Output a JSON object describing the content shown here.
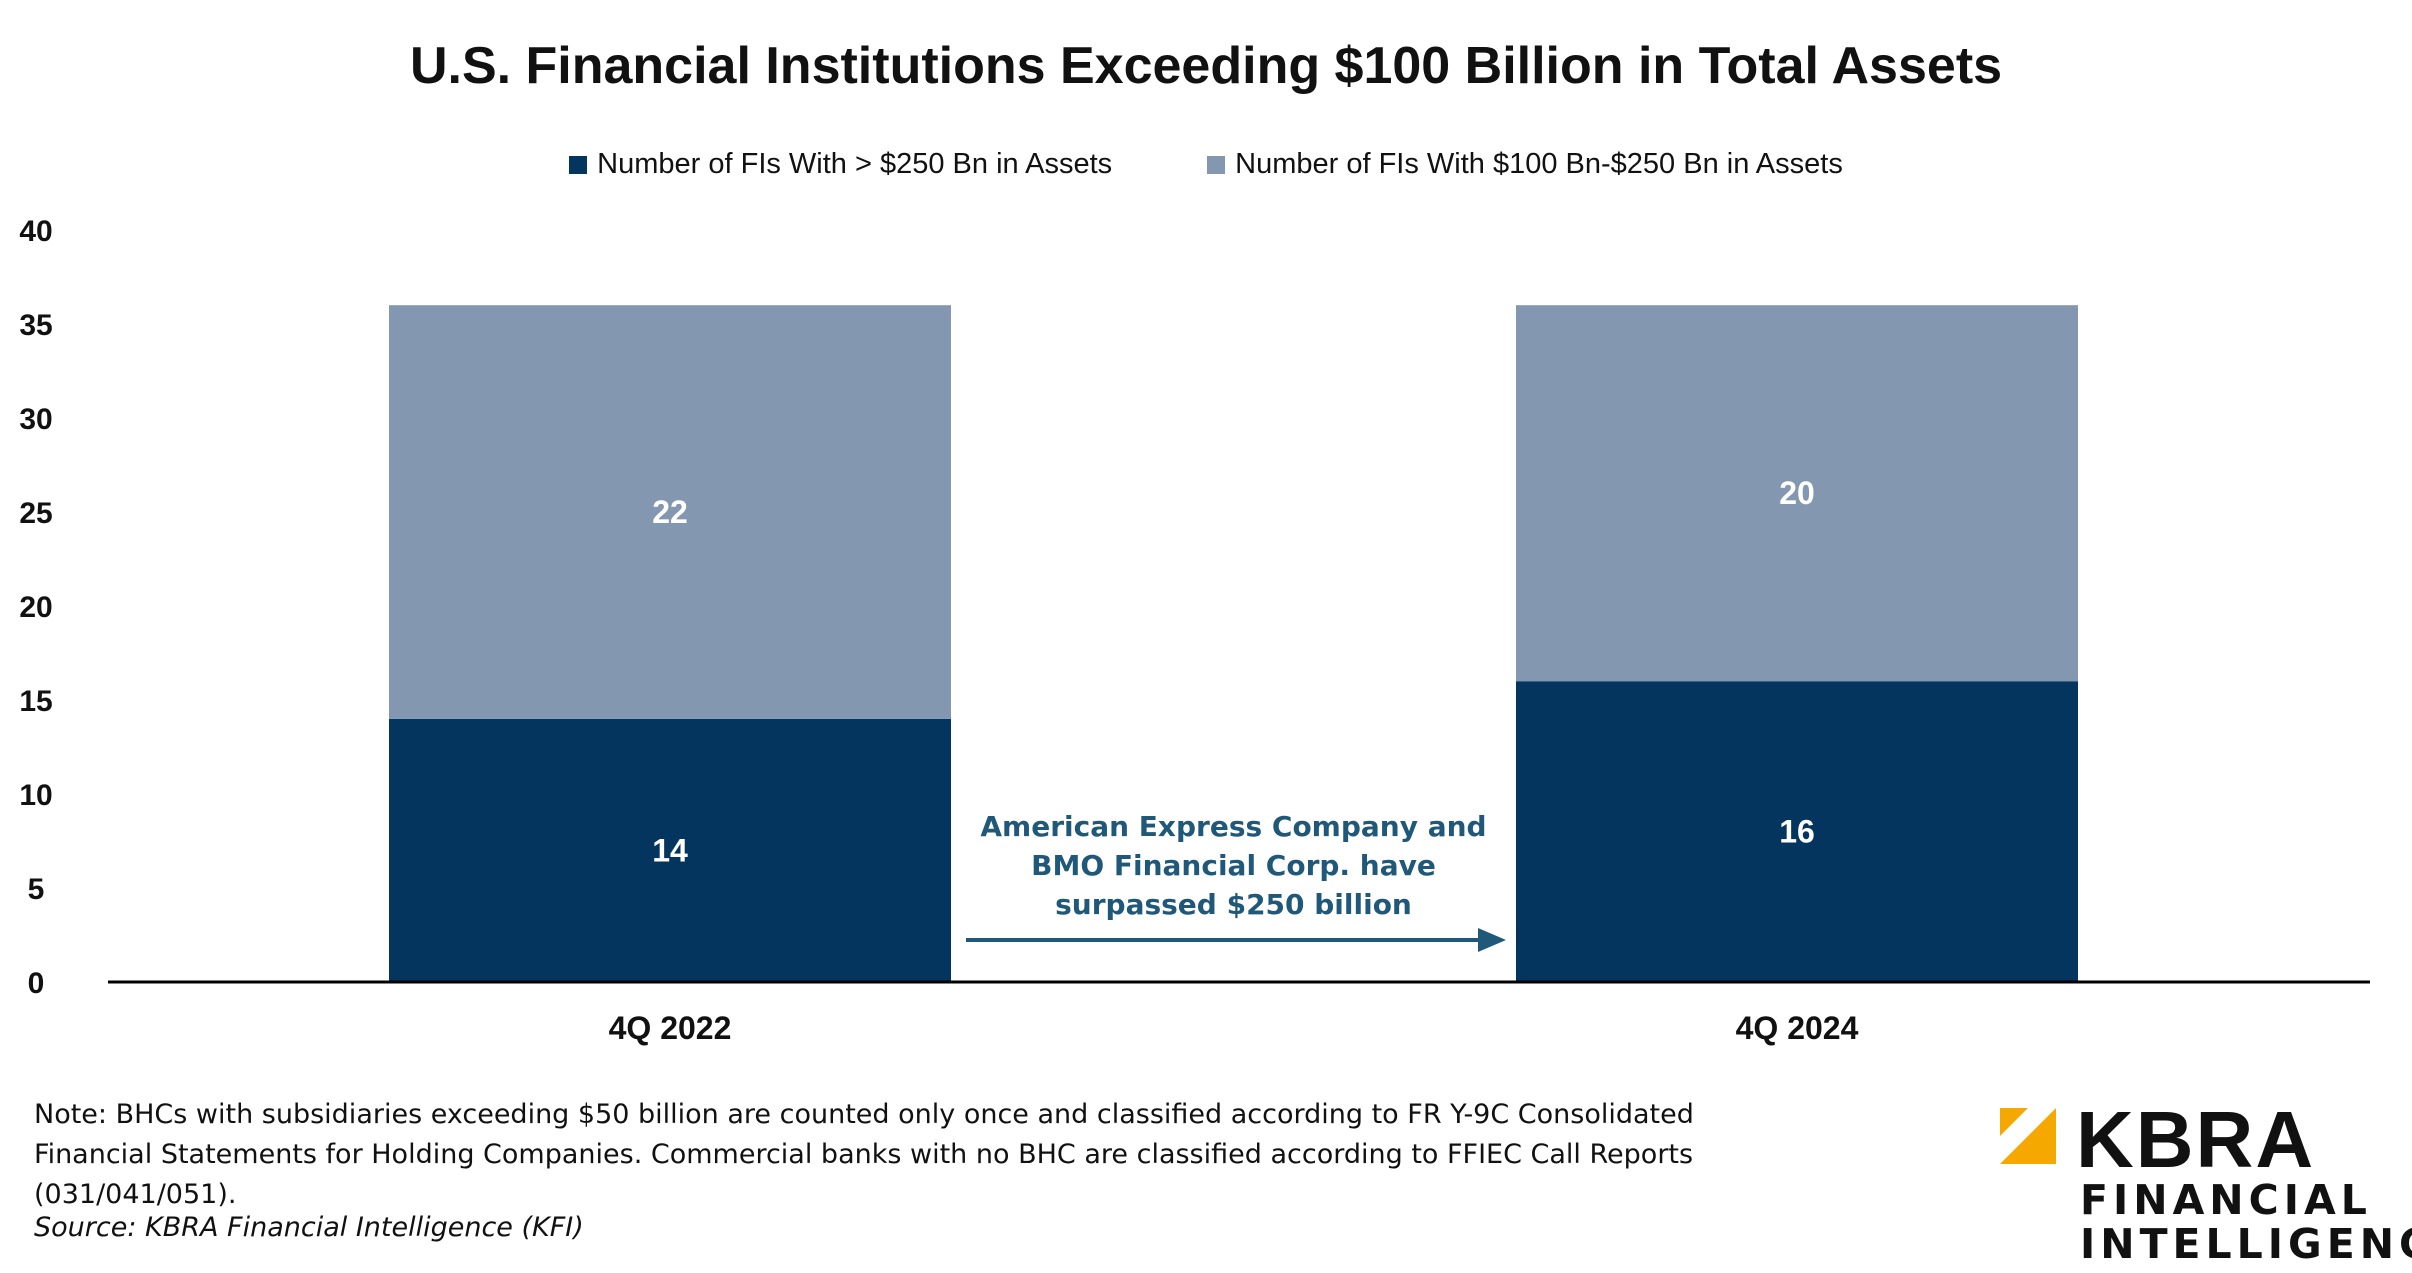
{
  "chart_data": {
    "type": "bar",
    "stacked": true,
    "title": "U.S. Financial Institutions Exceeding $100 Billion in Total Assets",
    "categories": [
      "4Q 2022",
      "4Q 2024"
    ],
    "series": [
      {
        "name": "Number of FIs With > $250 Bn in Assets",
        "values": [
          14,
          16
        ],
        "color": "#04355f"
      },
      {
        "name": "Number of FIs With $100 Bn-$250 Bn in Assets",
        "values": [
          22,
          20
        ],
        "color": "#8497b0"
      }
    ],
    "ylim": [
      0,
      40
    ],
    "yticks": [
      "0",
      "5",
      "10",
      "15",
      "20",
      "25",
      "30",
      "35",
      "40"
    ],
    "grid": false,
    "legend_position": "top",
    "annotation": {
      "lines": [
        "American Express Company and",
        "BMO Financial Corp. have",
        "surpassed $250 billion"
      ],
      "color": "#1f5878"
    }
  },
  "footer": {
    "note": "Note: BHCs with subsidiaries exceeding $50 billion are counted only once and classified according to FR Y-9C Consolidated Financial Statements for Holding Companies. Commercial banks with no BHC are classified according to FFIEC Call Reports (031/041/051).",
    "source": "Source: KBRA Financial Intelligence (KFI)"
  },
  "logo": {
    "name": "KBRA",
    "line1": "FINANCIAL",
    "line2": "INTELLIGENCE",
    "color": "#f5a800"
  }
}
